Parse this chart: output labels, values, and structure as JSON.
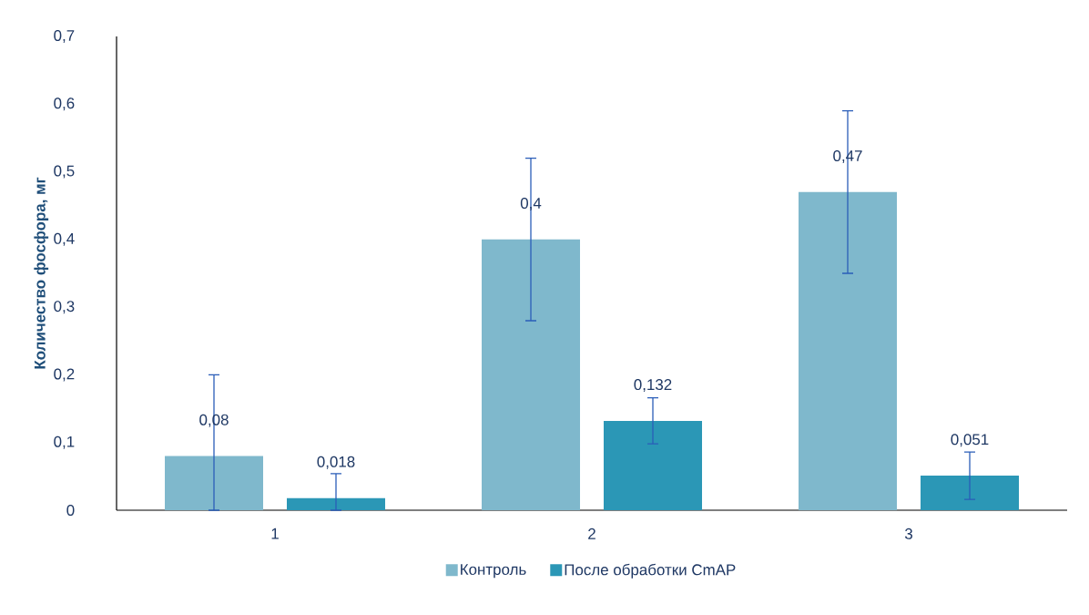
{
  "chart_data": {
    "type": "bar",
    "ylabel": "Количество фосфора, мг",
    "categories": [
      "1",
      "2",
      "3"
    ],
    "series": [
      {
        "name": "Контроль",
        "color": "#7fb8cc",
        "values": [
          0.08,
          0.4,
          0.47
        ],
        "value_labels": [
          "0,08",
          "0,4",
          "0,47"
        ],
        "errors": [
          [
            0,
            0.2
          ],
          0.12,
          0.12
        ]
      },
      {
        "name": "После обработки CmAP",
        "color": "#2b97b6",
        "values": [
          0.018,
          0.132,
          0.051
        ],
        "value_labels": [
          "0,018",
          "0,132",
          "0,051"
        ],
        "errors": [
          [
            0,
            0.054
          ],
          0.034,
          0.035
        ]
      }
    ],
    "ylim": [
      0,
      0.7
    ],
    "yticks": [
      0,
      {
        "value": 0.1,
        "label": "0,1"
      },
      {
        "value": 0.2,
        "label": "0,2"
      },
      {
        "value": 0.3,
        "label": "0,3"
      },
      {
        "value": 0.4,
        "label": "0,4"
      },
      {
        "value": 0.5,
        "label": "0,5"
      },
      {
        "value": 0.6,
        "label": "0,6"
      },
      {
        "value": 0.7,
        "label": "0,7"
      }
    ],
    "legend": "bottom",
    "grid": false
  }
}
